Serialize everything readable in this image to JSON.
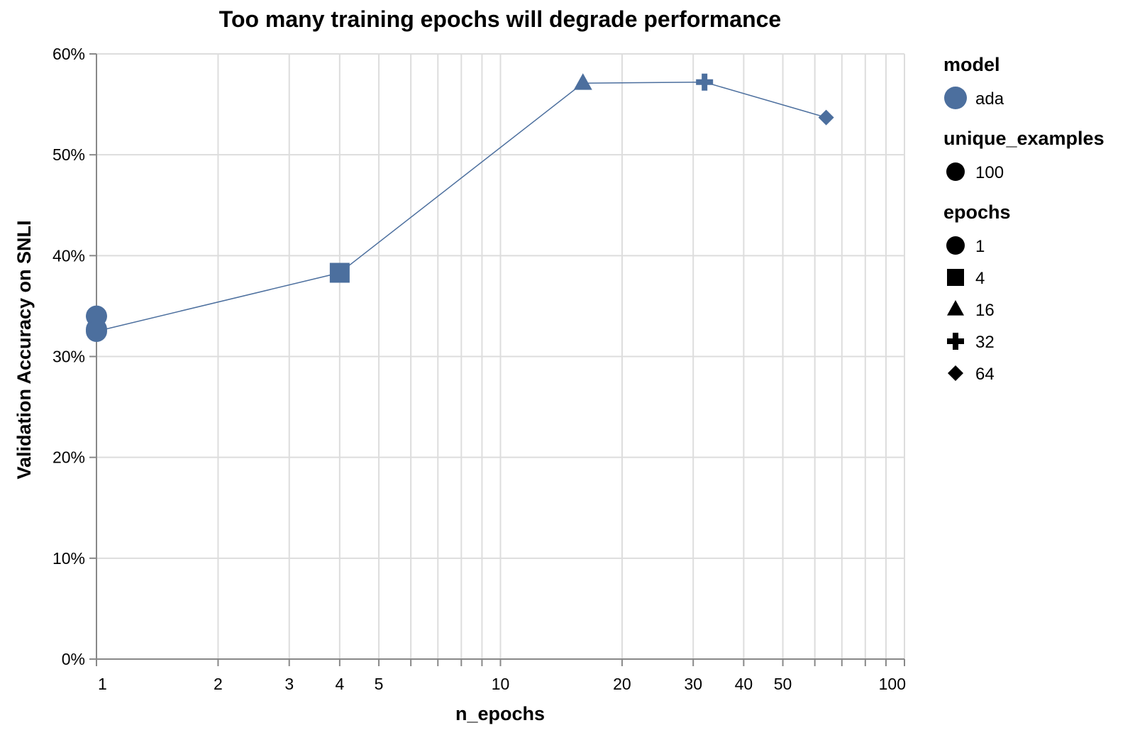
{
  "chart_data": {
    "type": "line",
    "title": "Too many training epochs will degrade performance",
    "xlabel": "n_epochs",
    "ylabel": "Validation Accuracy on SNLI",
    "x_scale": "log",
    "xlim": [
      1,
      100
    ],
    "ylim": [
      0,
      0.6
    ],
    "x_ticks": [
      {
        "value": 1,
        "label": "1"
      },
      {
        "value": 2,
        "label": "2"
      },
      {
        "value": 3,
        "label": "3"
      },
      {
        "value": 4,
        "label": "4"
      },
      {
        "value": 5,
        "label": "5"
      },
      {
        "value": 10,
        "label": "10"
      },
      {
        "value": 20,
        "label": "20"
      },
      {
        "value": 30,
        "label": "30"
      },
      {
        "value": 40,
        "label": "40"
      },
      {
        "value": 50,
        "label": "50"
      },
      {
        "value": 100,
        "label": "100"
      }
    ],
    "x_minor_ticks": [
      6,
      7,
      8,
      9,
      60,
      70,
      80,
      90
    ],
    "y_ticks": [
      {
        "value": 0,
        "label": "0%"
      },
      {
        "value": 0.1,
        "label": "10%"
      },
      {
        "value": 0.2,
        "label": "20%"
      },
      {
        "value": 0.3,
        "label": "30%"
      },
      {
        "value": 0.4,
        "label": "40%"
      },
      {
        "value": 0.5,
        "label": "50%"
      },
      {
        "value": 0.6,
        "label": "60%"
      }
    ],
    "grid": true,
    "series": [
      {
        "name": "ada",
        "color": "#4c6f9e",
        "points": [
          {
            "x": 1,
            "y": 0.34,
            "shape": "circle"
          },
          {
            "x": 1,
            "y": 0.327,
            "shape": "circle"
          },
          {
            "x": 1,
            "y": 0.325,
            "shape": "circle"
          },
          {
            "x": 4,
            "y": 0.383,
            "shape": "square"
          },
          {
            "x": 16,
            "y": 0.571,
            "shape": "triangle"
          },
          {
            "x": 32,
            "y": 0.572,
            "shape": "cross"
          },
          {
            "x": 64,
            "y": 0.537,
            "shape": "diamond"
          }
        ],
        "line": [
          {
            "x": 1,
            "y": 0.325
          },
          {
            "x": 4,
            "y": 0.383
          },
          {
            "x": 16,
            "y": 0.571
          },
          {
            "x": 32,
            "y": 0.572
          },
          {
            "x": 64,
            "y": 0.537
          }
        ]
      }
    ],
    "legend": {
      "position": "right",
      "groups": [
        {
          "title": "model",
          "entries": [
            {
              "label": "ada",
              "shape": "circle",
              "color": "#4c6f9e"
            }
          ]
        },
        {
          "title": "unique_examples",
          "entries": [
            {
              "label": "100",
              "shape": "circle",
              "color": "#000000"
            }
          ]
        },
        {
          "title": "epochs",
          "entries": [
            {
              "label": "1",
              "shape": "circle",
              "color": "#000000"
            },
            {
              "label": "4",
              "shape": "square",
              "color": "#000000"
            },
            {
              "label": "16",
              "shape": "triangle",
              "color": "#000000"
            },
            {
              "label": "32",
              "shape": "cross",
              "color": "#000000"
            },
            {
              "label": "64",
              "shape": "diamond",
              "color": "#000000"
            }
          ]
        }
      ]
    }
  }
}
